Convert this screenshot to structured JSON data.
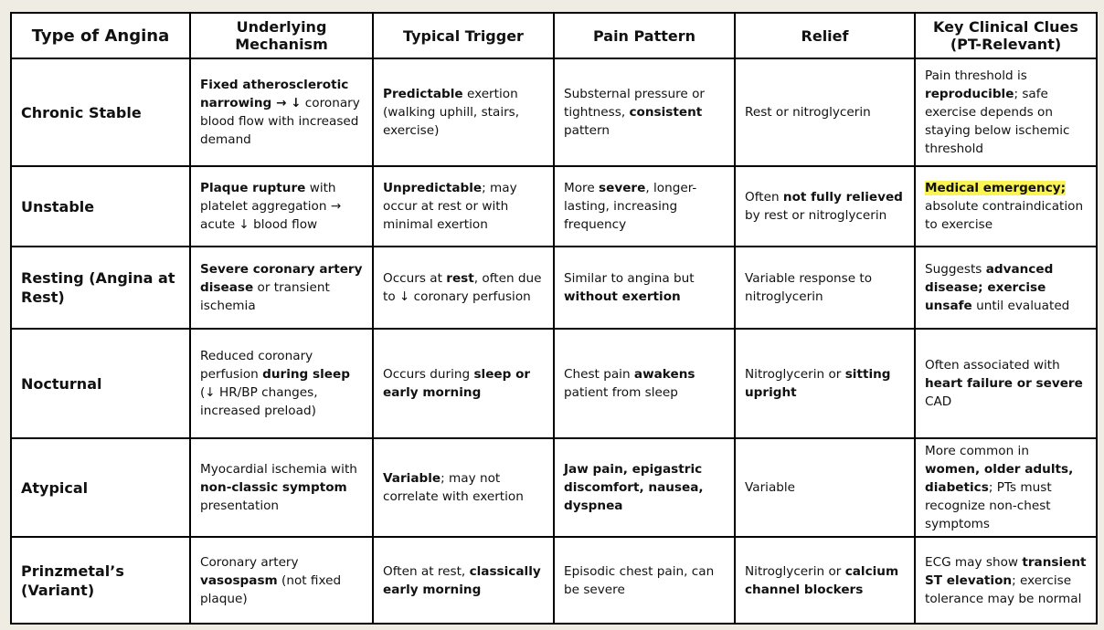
{
  "table": {
    "headers": [
      "Type of Angina",
      "Underlying Mechanism",
      "Typical Trigger",
      "Pain Pattern",
      "Relief",
      "Key Clinical Clues (PT-Relevant)"
    ],
    "highlight_color": "#fbf455",
    "rows": [
      {
        "type": "Chronic Stable",
        "cells": [
          [
            {
              "t": "Fixed atherosclerotic narrowing → ↓",
              "b": true
            },
            {
              "t": " coronary blood flow with increased demand"
            }
          ],
          [
            {
              "t": "Predictable",
              "b": true
            },
            {
              "t": " exertion (walking uphill, stairs, exercise)"
            }
          ],
          [
            {
              "t": "Substernal pressure or tightness, "
            },
            {
              "t": "consistent",
              "b": true
            },
            {
              "t": " pattern"
            }
          ],
          [
            {
              "t": "Rest or nitroglycerin"
            }
          ],
          [
            {
              "t": "Pain threshold is "
            },
            {
              "t": "reproducible",
              "b": true
            },
            {
              "t": "; safe exercise depends on staying below ischemic threshold"
            }
          ]
        ]
      },
      {
        "type": "Unstable",
        "cells": [
          [
            {
              "t": "Plaque rupture",
              "b": true
            },
            {
              "t": " with platelet aggregation → acute ↓ blood flow"
            }
          ],
          [
            {
              "t": "Unpredictable",
              "b": true
            },
            {
              "t": "; may occur at rest or with minimal exertion"
            }
          ],
          [
            {
              "t": "More "
            },
            {
              "t": "severe",
              "b": true
            },
            {
              "t": ", longer-lasting, increasing frequency"
            }
          ],
          [
            {
              "t": "Often "
            },
            {
              "t": "not fully relieved",
              "b": true
            },
            {
              "t": " by rest or nitroglycerin"
            }
          ],
          [
            {
              "t": "Medical emergency;",
              "b": true,
              "hl": true
            },
            {
              "t": " absolute contraindication to exercise"
            }
          ]
        ]
      },
      {
        "type": "Resting (Angina at Rest)",
        "cells": [
          [
            {
              "t": "Severe coronary artery disease",
              "b": true
            },
            {
              "t": " or transient ischemia"
            }
          ],
          [
            {
              "t": "Occurs at "
            },
            {
              "t": "rest",
              "b": true
            },
            {
              "t": ", often due to ↓ coronary perfusion"
            }
          ],
          [
            {
              "t": "Similar to angina but "
            },
            {
              "t": "without exertion",
              "b": true
            }
          ],
          [
            {
              "t": "Variable response to nitroglycerin"
            }
          ],
          [
            {
              "t": "Suggests "
            },
            {
              "t": "advanced disease; exercise unsafe",
              "b": true
            },
            {
              "t": " until evaluated"
            }
          ]
        ]
      },
      {
        "type": "Nocturnal",
        "cells": [
          [
            {
              "t": "Reduced coronary perfusion "
            },
            {
              "t": "during sleep",
              "b": true
            },
            {
              "t": " (↓ HR/BP changes, increased preload)"
            }
          ],
          [
            {
              "t": "Occurs during "
            },
            {
              "t": "sleep or early morning",
              "b": true
            }
          ],
          [
            {
              "t": "Chest pain "
            },
            {
              "t": "awakens",
              "b": true
            },
            {
              "t": " patient from sleep"
            }
          ],
          [
            {
              "t": "Nitroglycerin or "
            },
            {
              "t": "sitting upright",
              "b": true
            }
          ],
          [
            {
              "t": "Often associated with "
            },
            {
              "t": "heart failure or severe",
              "b": true
            },
            {
              "t": " CAD"
            }
          ]
        ]
      },
      {
        "type": "Atypical",
        "cells": [
          [
            {
              "t": "Myocardial ischemia with "
            },
            {
              "t": "non-classic symptom",
              "b": true
            },
            {
              "t": " presentation"
            }
          ],
          [
            {
              "t": "Variable",
              "b": true
            },
            {
              "t": "; may not correlate with exertion"
            }
          ],
          [
            {
              "t": "Jaw pain, epigastric discomfort, nausea, dyspnea",
              "b": true
            }
          ],
          [
            {
              "t": "Variable"
            }
          ],
          [
            {
              "t": "More common in "
            },
            {
              "t": "women, older adults, diabetics",
              "b": true
            },
            {
              "t": "; PTs must recognize non-chest symptoms"
            }
          ]
        ]
      },
      {
        "type": "Prinzmetal’s (Variant)",
        "cells": [
          [
            {
              "t": "Coronary artery "
            },
            {
              "t": "vasospasm",
              "b": true
            },
            {
              "t": " (not fixed plaque)"
            }
          ],
          [
            {
              "t": "Often at rest, "
            },
            {
              "t": "classically early morning",
              "b": true
            }
          ],
          [
            {
              "t": "Episodic chest pain, can be severe"
            }
          ],
          [
            {
              "t": "Nitroglycerin or "
            },
            {
              "t": "calcium channel blockers",
              "b": true
            }
          ],
          [
            {
              "t": "ECG may show "
            },
            {
              "t": "transient ST elevation",
              "b": true
            },
            {
              "t": "; exercise tolerance may be normal"
            }
          ]
        ]
      }
    ]
  }
}
